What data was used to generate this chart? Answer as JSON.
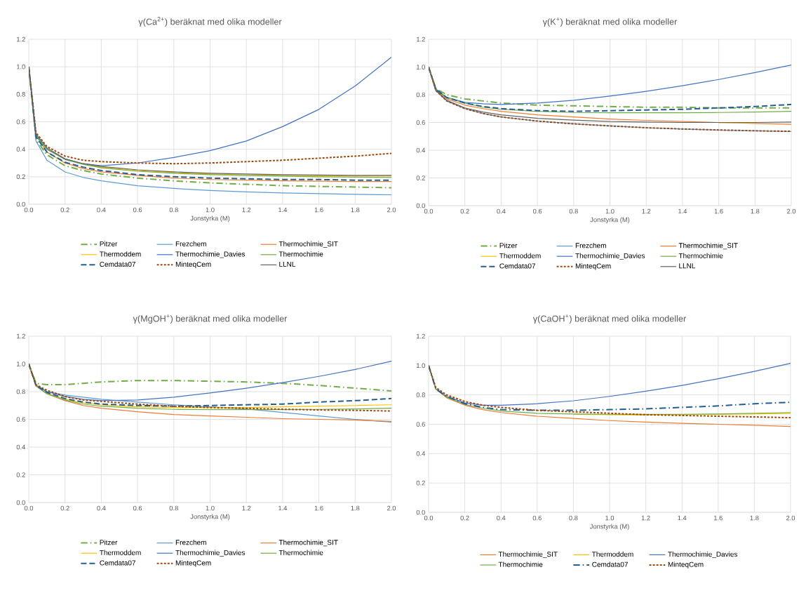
{
  "chart_data": [
    {
      "type": "line",
      "title": "γ(Ca$^{2+}$) beräknat med olika modeller",
      "xlabel": "Jonstyrka (M)",
      "x": [
        0,
        0.04,
        0.1,
        0.2,
        0.3,
        0.4,
        0.6,
        0.8,
        1.0,
        1.2,
        1.4,
        1.6,
        1.8,
        2.0
      ],
      "xlim": [
        0,
        2
      ],
      "ylim": [
        0,
        1.2
      ],
      "xticks": [
        {
          "value": 0,
          "label": "0.0"
        },
        {
          "value": 0.2,
          "label": "0.2"
        },
        {
          "value": 0.4,
          "label": "0.4"
        },
        {
          "value": 0.6,
          "label": "0.6"
        },
        {
          "value": 0.8,
          "label": "0.8"
        },
        {
          "value": 1.0,
          "label": "1.0"
        },
        {
          "value": 1.2,
          "label": "1.2"
        },
        {
          "value": 1.4,
          "label": "1.4"
        },
        {
          "value": 1.6,
          "label": "1.6"
        },
        {
          "value": 1.8,
          "label": "1.8"
        },
        {
          "value": 2.0,
          "label": "2.0"
        }
      ],
      "yticks": [
        {
          "value": 0,
          "label": "0.0"
        },
        {
          "value": 0.2,
          "label": "0.2"
        },
        {
          "value": 0.4,
          "label": "0.4"
        },
        {
          "value": 0.6,
          "label": "0.6"
        },
        {
          "value": 0.8,
          "label": "0.8"
        },
        {
          "value": 1.0,
          "label": "1.0"
        },
        {
          "value": 1.2,
          "label": "1.2"
        }
      ],
      "grid": true,
      "legend": "bottom",
      "series": [
        {
          "name": "Pitzer",
          "color": "#70ad47",
          "line_style": "dashdot",
          "values": [
            1,
            0.47,
            0.36,
            0.28,
            0.245,
            0.22,
            0.19,
            0.17,
            0.155,
            0.145,
            0.135,
            0.13,
            0.125,
            0.12
          ]
        },
        {
          "name": "Frezchem",
          "color": "#5b9bd5",
          "line_style": "solid",
          "values": [
            1,
            0.46,
            0.32,
            0.235,
            0.195,
            0.17,
            0.135,
            0.115,
            0.1,
            0.09,
            0.082,
            0.077,
            0.072,
            0.068
          ]
        },
        {
          "name": "Thermochimie_SIT",
          "color": "#ed7d31",
          "line_style": "solid",
          "values": [
            1,
            0.5,
            0.38,
            0.3,
            0.26,
            0.235,
            0.21,
            0.19,
            0.18,
            0.175,
            0.17,
            0.168,
            0.165,
            0.165
          ]
        },
        {
          "name": "Thermoddem",
          "color": "#ffc000",
          "line_style": "solid",
          "values": [
            null,
            null,
            null,
            null,
            0.295,
            0.27,
            0.245,
            0.23,
            0.22,
            0.213,
            0.21,
            0.207,
            0.205,
            0.205
          ]
        },
        {
          "name": "Thermochimie_Davies",
          "color": "#4472c4",
          "line_style": "solid",
          "values": [
            1,
            0.5,
            0.4,
            0.33,
            0.295,
            0.28,
            0.3,
            0.34,
            0.39,
            0.46,
            0.565,
            0.69,
            0.86,
            1.07
          ]
        },
        {
          "name": "Thermochimie",
          "color": "#70ad47",
          "line_style": "solid",
          "values": [
            1,
            0.5,
            0.4,
            0.325,
            0.29,
            0.265,
            0.24,
            0.225,
            0.215,
            0.21,
            0.205,
            0.2,
            0.197,
            0.195
          ]
        },
        {
          "name": "Cemdata07",
          "color": "#255e91",
          "line_style": "dashed",
          "values": [
            1,
            0.49,
            0.38,
            0.305,
            0.27,
            0.245,
            0.215,
            0.2,
            0.19,
            0.185,
            0.18,
            0.18,
            0.175,
            0.175
          ]
        },
        {
          "name": "MinteqCem",
          "color": "#9e480e",
          "line_style": "dotted",
          "values": [
            1,
            0.52,
            0.42,
            0.35,
            0.32,
            0.31,
            0.3,
            0.295,
            0.3,
            0.31,
            0.32,
            0.335,
            0.35,
            0.37
          ]
        },
        {
          "name": "LLNL",
          "color": "#636363",
          "line_style": "solid",
          "values": [
            1,
            0.51,
            0.41,
            0.33,
            0.295,
            0.275,
            0.25,
            0.235,
            0.225,
            0.22,
            0.215,
            0.212,
            0.21,
            0.21
          ]
        }
      ]
    },
    {
      "type": "line",
      "title": "γ(K$^{+}$) beräknat med olika modeller",
      "xlabel": "Jonstyrka (M)",
      "x": [
        0,
        0.04,
        0.1,
        0.2,
        0.3,
        0.4,
        0.6,
        0.8,
        1.0,
        1.2,
        1.4,
        1.6,
        1.8,
        2.0
      ],
      "xlim": [
        0,
        2
      ],
      "ylim": [
        0,
        1.2
      ],
      "xticks": [
        {
          "value": 0,
          "label": "0.0"
        },
        {
          "value": 0.2,
          "label": "0.2"
        },
        {
          "value": 0.4,
          "label": "0.4"
        },
        {
          "value": 0.6,
          "label": "0.6"
        },
        {
          "value": 0.8,
          "label": "0.8"
        },
        {
          "value": 1.0,
          "label": "1.0"
        },
        {
          "value": 1.2,
          "label": "1.2"
        },
        {
          "value": 1.4,
          "label": "1.4"
        },
        {
          "value": 1.6,
          "label": "1.6"
        },
        {
          "value": 1.8,
          "label": "1.8"
        },
        {
          "value": 2.0,
          "label": "2.0"
        }
      ],
      "yticks": [
        {
          "value": 0,
          "label": "0.0"
        },
        {
          "value": 0.2,
          "label": "0.2"
        },
        {
          "value": 0.4,
          "label": "0.4"
        },
        {
          "value": 0.6,
          "label": "0.6"
        },
        {
          "value": 0.8,
          "label": "0.8"
        },
        {
          "value": 1.0,
          "label": "1.0"
        },
        {
          "value": 1.2,
          "label": "1.2"
        }
      ],
      "grid": true,
      "legend": "bottom",
      "series": [
        {
          "name": "Pitzer",
          "color": "#70ad47",
          "line_style": "dashdot",
          "values": [
            1,
            0.845,
            0.8,
            0.77,
            0.755,
            0.74,
            0.725,
            0.72,
            0.715,
            0.71,
            0.71,
            0.705,
            0.705,
            0.705
          ]
        },
        {
          "name": "Frezchem",
          "color": "#5b9bd5",
          "line_style": "solid",
          "values": [
            1,
            0.83,
            0.755,
            0.7,
            0.665,
            0.64,
            0.61,
            0.59,
            0.575,
            0.562,
            0.552,
            0.545,
            0.54,
            0.535
          ]
        },
        {
          "name": "Thermochimie_SIT",
          "color": "#ed7d31",
          "line_style": "solid",
          "values": [
            1,
            0.835,
            0.77,
            0.725,
            0.7,
            0.68,
            0.655,
            0.64,
            0.625,
            0.615,
            0.607,
            0.6,
            0.593,
            0.587
          ]
        },
        {
          "name": "Thermoddem",
          "color": "#ffc000",
          "line_style": "solid",
          "values": [
            null,
            null,
            null,
            null,
            null,
            null,
            null,
            null,
            null,
            null,
            null,
            0.598,
            0.598,
            null
          ]
        },
        {
          "name": "Thermochimie_Davies",
          "color": "#4472c4",
          "line_style": "solid",
          "values": [
            1,
            0.84,
            0.78,
            0.745,
            0.735,
            0.73,
            0.74,
            0.76,
            0.79,
            0.825,
            0.865,
            0.91,
            0.96,
            1.015
          ]
        },
        {
          "name": "Thermochimie",
          "color": "#70ad47",
          "line_style": "solid",
          "values": [
            1,
            0.84,
            0.78,
            0.74,
            0.71,
            0.695,
            0.68,
            0.672,
            0.67,
            0.67,
            0.67,
            0.672,
            0.675,
            0.68
          ]
        },
        {
          "name": "Cemdata07",
          "color": "#255e91",
          "line_style": "dashed",
          "values": [
            1,
            0.84,
            0.78,
            0.74,
            0.715,
            0.7,
            0.685,
            0.68,
            0.685,
            0.69,
            0.695,
            0.705,
            0.715,
            0.73
          ]
        },
        {
          "name": "MinteqCem",
          "color": "#9e480e",
          "line_style": "dotted",
          "values": [
            1,
            0.83,
            0.755,
            0.7,
            0.665,
            0.64,
            0.61,
            0.59,
            0.575,
            0.562,
            0.553,
            0.546,
            0.54,
            0.536
          ]
        },
        {
          "name": "LLNL",
          "color": "#636363",
          "line_style": "solid",
          "values": [
            1,
            0.83,
            0.76,
            0.705,
            0.675,
            0.655,
            0.63,
            0.617,
            0.607,
            0.603,
            0.6,
            0.6,
            0.6,
            0.603
          ]
        }
      ]
    },
    {
      "type": "line",
      "title": "γ(MgOH$^{+}$) beräknat med olika modeller",
      "xlabel": "Jonstyrka (M)",
      "x": [
        0,
        0.04,
        0.1,
        0.2,
        0.3,
        0.4,
        0.6,
        0.8,
        1.0,
        1.2,
        1.4,
        1.6,
        1.8,
        2.0
      ],
      "xlim": [
        0,
        2
      ],
      "ylim": [
        0,
        1.2
      ],
      "xticks": [
        {
          "value": 0,
          "label": "0.0"
        },
        {
          "value": 0.2,
          "label": "0.2"
        },
        {
          "value": 0.4,
          "label": "0.4"
        },
        {
          "value": 0.6,
          "label": "0.6"
        },
        {
          "value": 0.8,
          "label": "0.8"
        },
        {
          "value": 1.0,
          "label": "1.0"
        },
        {
          "value": 1.2,
          "label": "1.2"
        },
        {
          "value": 1.4,
          "label": "1.4"
        },
        {
          "value": 1.6,
          "label": "1.6"
        },
        {
          "value": 1.8,
          "label": "1.8"
        },
        {
          "value": 2.0,
          "label": "2.0"
        }
      ],
      "yticks": [
        {
          "value": 0,
          "label": "0.0"
        },
        {
          "value": 0.2,
          "label": "0.2"
        },
        {
          "value": 0.4,
          "label": "0.4"
        },
        {
          "value": 0.6,
          "label": "0.6"
        },
        {
          "value": 0.8,
          "label": "0.8"
        },
        {
          "value": 1.0,
          "label": "1.0"
        },
        {
          "value": 1.2,
          "label": "1.2"
        }
      ],
      "grid": true,
      "legend": "bottom",
      "series": [
        {
          "name": "Pitzer",
          "color": "#70ad47",
          "line_style": "dashdot",
          "values": [
            1,
            0.86,
            0.85,
            0.85,
            0.86,
            0.87,
            0.88,
            0.88,
            0.875,
            0.87,
            0.86,
            0.845,
            0.825,
            0.805
          ]
        },
        {
          "name": "Frezchem",
          "color": "#5b9bd5",
          "line_style": "solid",
          "values": [
            1,
            0.845,
            0.8,
            0.775,
            0.76,
            0.745,
            0.725,
            0.705,
            0.69,
            0.675,
            0.65,
            0.625,
            0.6,
            0.58
          ]
        },
        {
          "name": "Thermochimie_SIT",
          "color": "#ed7d31",
          "line_style": "solid",
          "values": [
            1,
            0.84,
            0.785,
            0.735,
            0.7,
            0.68,
            0.655,
            0.635,
            0.625,
            0.615,
            0.605,
            0.6,
            0.595,
            0.585
          ]
        },
        {
          "name": "Thermoddem",
          "color": "#ffc000",
          "line_style": "solid",
          "values": [
            1,
            0.84,
            0.79,
            0.745,
            0.72,
            0.705,
            0.69,
            0.685,
            0.685,
            0.685,
            0.69,
            0.695,
            0.7,
            0.705
          ]
        },
        {
          "name": "Thermochimie_Davies",
          "color": "#4472c4",
          "line_style": "solid",
          "values": [
            1,
            0.845,
            0.8,
            0.765,
            0.745,
            0.735,
            0.74,
            0.76,
            0.79,
            0.825,
            0.865,
            0.91,
            0.96,
            1.02
          ]
        },
        {
          "name": "Thermochimie",
          "color": "#70ad47",
          "line_style": "solid",
          "values": [
            1,
            0.84,
            0.785,
            0.74,
            0.71,
            0.695,
            0.68,
            0.672,
            0.67,
            0.67,
            0.67,
            0.672,
            0.675,
            0.68
          ]
        },
        {
          "name": "Cemdata07",
          "color": "#255e91",
          "line_style": "dashed",
          "values": [
            1,
            0.845,
            0.795,
            0.75,
            0.725,
            0.71,
            0.7,
            0.695,
            0.7,
            0.705,
            0.71,
            0.725,
            0.735,
            0.75
          ]
        },
        {
          "name": "MinteqCem",
          "color": "#9e480e",
          "line_style": "dotted",
          "values": [
            1,
            0.85,
            0.81,
            0.765,
            0.74,
            0.73,
            0.71,
            0.695,
            0.685,
            0.68,
            0.673,
            0.668,
            0.665,
            0.66
          ]
        }
      ]
    },
    {
      "type": "line",
      "title": "γ(CaOH$^{+}$) beräknat med olika modeller",
      "xlabel": "Jonstyrka (M)",
      "x": [
        0,
        0.04,
        0.1,
        0.2,
        0.3,
        0.4,
        0.6,
        0.8,
        1.0,
        1.2,
        1.4,
        1.6,
        1.8,
        2.0
      ],
      "xlim": [
        0,
        2
      ],
      "ylim": [
        0,
        1.2
      ],
      "xticks": [
        {
          "value": 0,
          "label": "0.0"
        },
        {
          "value": 0.2,
          "label": "0.2"
        },
        {
          "value": 0.4,
          "label": "0.4"
        },
        {
          "value": 0.6,
          "label": "0.6"
        },
        {
          "value": 0.8,
          "label": "0.8"
        },
        {
          "value": 1.0,
          "label": "1.0"
        },
        {
          "value": 1.2,
          "label": "1.2"
        },
        {
          "value": 1.4,
          "label": "1.4"
        },
        {
          "value": 1.6,
          "label": "1.6"
        },
        {
          "value": 1.8,
          "label": "1.8"
        },
        {
          "value": 2.0,
          "label": "2.0"
        }
      ],
      "yticks": [
        {
          "value": 0,
          "label": "0.0"
        },
        {
          "value": 0.2,
          "label": "0.2"
        },
        {
          "value": 0.4,
          "label": "0.4"
        },
        {
          "value": 0.6,
          "label": "0.6"
        },
        {
          "value": 0.8,
          "label": "0.8"
        },
        {
          "value": 1.0,
          "label": "1.0"
        },
        {
          "value": 1.2,
          "label": "1.2"
        }
      ],
      "grid": true,
      "legend": "bottom",
      "series": [
        {
          "name": "Thermochimie_SIT",
          "color": "#ed7d31",
          "line_style": "solid",
          "values": [
            1,
            0.84,
            0.78,
            0.73,
            0.7,
            0.68,
            0.655,
            0.64,
            0.625,
            0.615,
            0.607,
            0.6,
            0.593,
            0.585
          ]
        },
        {
          "name": "Thermoddem",
          "color": "#ffc000",
          "line_style": "solid",
          "values": [
            null,
            null,
            null,
            null,
            null,
            null,
            null,
            0.668,
            0.665,
            0.663,
            0.665,
            0.667,
            0.67,
            0.673
          ]
        },
        {
          "name": "Thermochimie_Davies",
          "color": "#4472c4",
          "line_style": "solid",
          "values": [
            1,
            0.84,
            0.79,
            0.745,
            0.73,
            0.73,
            0.74,
            0.76,
            0.79,
            0.825,
            0.865,
            0.91,
            0.96,
            1.015
          ]
        },
        {
          "name": "Thermochimie",
          "color": "#70ad47",
          "line_style": "solid",
          "values": [
            1,
            0.84,
            0.785,
            0.735,
            0.71,
            0.69,
            0.675,
            0.67,
            0.668,
            0.667,
            0.668,
            0.67,
            0.675,
            0.68
          ]
        },
        {
          "name": "Cemdata07",
          "color": "#255e91",
          "line_style": "dashdot",
          "values": [
            1,
            0.84,
            0.79,
            0.74,
            0.715,
            0.7,
            0.695,
            0.695,
            0.7,
            0.705,
            0.715,
            0.725,
            0.74,
            0.75
          ]
        },
        {
          "name": "MinteqCem",
          "color": "#9e480e",
          "line_style": "dotted",
          "values": [
            1,
            0.85,
            0.8,
            0.755,
            0.73,
            0.715,
            0.695,
            0.685,
            0.675,
            0.665,
            0.66,
            0.655,
            0.65,
            0.645
          ]
        }
      ]
    }
  ]
}
